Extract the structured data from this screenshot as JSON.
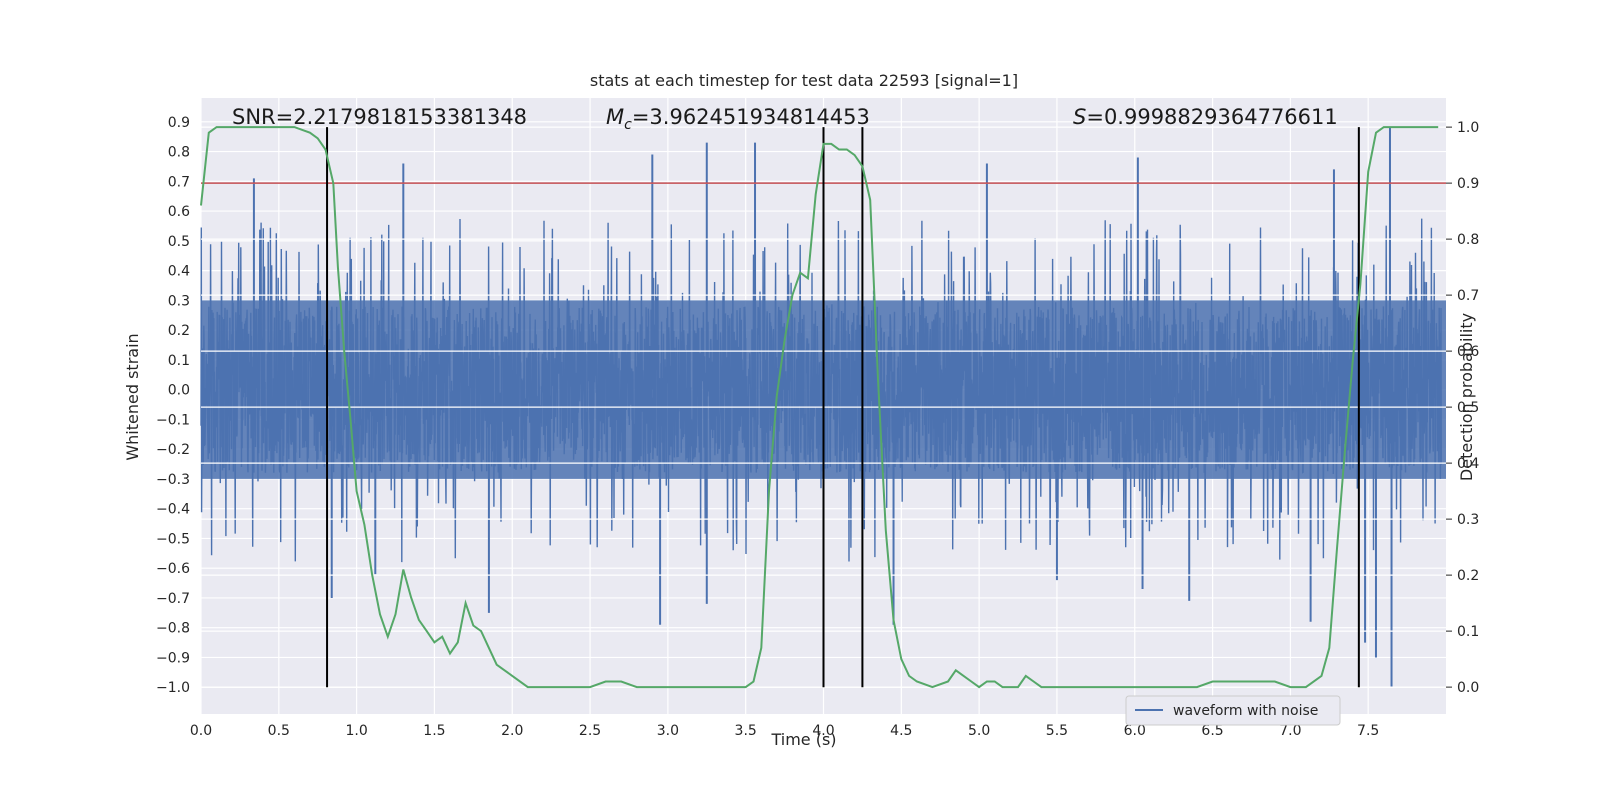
{
  "chart_data": {
    "type": "line",
    "title": "stats at each timestep for test data 22593 [signal=1]",
    "xlabel": "Time (s)",
    "ylabel": "Whitened strain",
    "y2label": "Detection probability",
    "xlim": [
      0.0,
      8.0
    ],
    "ylim": [
      -1.09,
      0.98
    ],
    "y2lim": [
      -0.048,
      1.052
    ],
    "x_ticks": [
      0.0,
      0.5,
      1.0,
      1.5,
      2.0,
      2.5,
      3.0,
      3.5,
      4.0,
      4.5,
      5.0,
      5.5,
      6.0,
      6.5,
      7.0,
      7.5
    ],
    "x_tick_labels": [
      "0.0",
      "0.5",
      "1.0",
      "1.5",
      "2.0",
      "2.5",
      "3.0",
      "3.5",
      "4.0",
      "4.5",
      "5.0",
      "5.5",
      "6.0",
      "6.5",
      "7.0",
      "7.5"
    ],
    "y_ticks": [
      -1.0,
      -0.9,
      -0.8,
      -0.7,
      -0.6,
      -0.5,
      -0.4,
      -0.3,
      -0.2,
      -0.1,
      0.0,
      0.1,
      0.2,
      0.3,
      0.4,
      0.5,
      0.6,
      0.7,
      0.8,
      0.9
    ],
    "y_tick_labels": [
      "−1.0",
      "−0.9",
      "−0.8",
      "−0.7",
      "−0.6",
      "−0.5",
      "−0.4",
      "−0.3",
      "−0.2",
      "−0.1",
      "0.0",
      "0.1",
      "0.2",
      "0.3",
      "0.4",
      "0.5",
      "0.6",
      "0.7",
      "0.8",
      "0.9"
    ],
    "y2_ticks": [
      0.0,
      0.1,
      0.2,
      0.3,
      0.4,
      0.5,
      0.6,
      0.7,
      0.8,
      0.9,
      1.0
    ],
    "y2_tick_labels": [
      "0.0",
      "0.1",
      "0.2",
      "0.3",
      "0.4",
      "0.5",
      "0.6",
      "0.7",
      "0.8",
      "0.9",
      "1.0"
    ],
    "grid": true,
    "legend": {
      "placement": "lower-right",
      "entries": [
        "waveform with noise"
      ]
    },
    "annotations": {
      "snr": "SNR=2.2179818153381348",
      "mc_symbol": "M",
      "mc_subscript": "c",
      "mc_value": "=3.962451934814453",
      "s_symbol": "S",
      "s_value": "=0.9998829364776611"
    },
    "threshold": {
      "y2": 0.9,
      "color": "#c44e52"
    },
    "vlines_x": [
      0.81,
      4.0,
      4.25,
      7.44
    ],
    "series": [
      {
        "name": "waveform with noise",
        "axis": "left",
        "color": "#4c72b0",
        "style": "noise",
        "base_amplitude": 0.28,
        "sample_step": 0.002,
        "spikes": [
          {
            "x": 0.34,
            "y": 0.71
          },
          {
            "x": 1.3,
            "y": 0.76
          },
          {
            "x": 2.9,
            "y": 0.79
          },
          {
            "x": 3.25,
            "y": 0.83
          },
          {
            "x": 3.56,
            "y": 0.83
          },
          {
            "x": 5.05,
            "y": 0.76
          },
          {
            "x": 6.02,
            "y": 0.78
          },
          {
            "x": 7.64,
            "y": 0.88
          },
          {
            "x": 7.28,
            "y": 0.74
          },
          {
            "x": 0.84,
            "y": -0.7
          },
          {
            "x": 1.85,
            "y": -0.75
          },
          {
            "x": 2.95,
            "y": -0.79
          },
          {
            "x": 3.25,
            "y": -0.72
          },
          {
            "x": 4.45,
            "y": -0.79
          },
          {
            "x": 7.65,
            "y": -1.0
          },
          {
            "x": 7.55,
            "y": -0.9
          },
          {
            "x": 7.48,
            "y": -0.85
          },
          {
            "x": 1.12,
            "y": -0.62
          },
          {
            "x": 6.05,
            "y": -0.67
          },
          {
            "x": 6.35,
            "y": -0.71
          },
          {
            "x": 7.13,
            "y": -0.78
          },
          {
            "x": 5.5,
            "y": -0.64
          }
        ]
      },
      {
        "name": "",
        "axis": "right",
        "color": "#55a868",
        "style": "line",
        "x": [
          0.0,
          0.05,
          0.1,
          0.2,
          0.3,
          0.4,
          0.5,
          0.6,
          0.7,
          0.75,
          0.8,
          0.85,
          0.88,
          0.92,
          0.96,
          1.0,
          1.05,
          1.1,
          1.15,
          1.2,
          1.25,
          1.3,
          1.35,
          1.4,
          1.45,
          1.5,
          1.55,
          1.6,
          1.65,
          1.7,
          1.75,
          1.8,
          1.85,
          1.9,
          1.95,
          2.0,
          2.1,
          2.2,
          2.3,
          2.4,
          2.5,
          2.6,
          2.7,
          2.8,
          2.9,
          3.0,
          3.1,
          3.2,
          3.3,
          3.4,
          3.5,
          3.55,
          3.6,
          3.65,
          3.7,
          3.75,
          3.8,
          3.85,
          3.9,
          3.95,
          4.0,
          4.05,
          4.1,
          4.15,
          4.2,
          4.25,
          4.3,
          4.35,
          4.4,
          4.45,
          4.5,
          4.55,
          4.6,
          4.7,
          4.8,
          4.85,
          4.9,
          4.95,
          5.0,
          5.05,
          5.1,
          5.15,
          5.2,
          5.25,
          5.3,
          5.35,
          5.4,
          5.45,
          5.5,
          5.6,
          5.7,
          5.8,
          5.9,
          6.0,
          6.1,
          6.2,
          6.3,
          6.4,
          6.5,
          6.6,
          6.7,
          6.8,
          6.9,
          7.0,
          7.1,
          7.2,
          7.25,
          7.3,
          7.35,
          7.4,
          7.45,
          7.5,
          7.55,
          7.6,
          7.7,
          7.8,
          7.95
        ],
        "y": [
          0.86,
          0.99,
          1.0,
          1.0,
          1.0,
          1.0,
          1.0,
          1.0,
          0.99,
          0.98,
          0.96,
          0.9,
          0.75,
          0.6,
          0.48,
          0.35,
          0.29,
          0.2,
          0.13,
          0.09,
          0.13,
          0.21,
          0.16,
          0.12,
          0.1,
          0.08,
          0.09,
          0.06,
          0.08,
          0.15,
          0.11,
          0.1,
          0.07,
          0.04,
          0.03,
          0.02,
          0.0,
          0.0,
          0.0,
          0.0,
          0.0,
          0.01,
          0.01,
          0.0,
          0.0,
          0.0,
          0.0,
          0.0,
          0.0,
          0.0,
          0.0,
          0.01,
          0.07,
          0.35,
          0.52,
          0.62,
          0.7,
          0.74,
          0.73,
          0.88,
          0.97,
          0.97,
          0.96,
          0.96,
          0.95,
          0.93,
          0.87,
          0.55,
          0.28,
          0.12,
          0.05,
          0.02,
          0.01,
          0.0,
          0.01,
          0.03,
          0.02,
          0.01,
          0.0,
          0.01,
          0.01,
          0.0,
          0.0,
          0.0,
          0.02,
          0.01,
          0.0,
          0.0,
          0.0,
          0.0,
          0.0,
          0.0,
          0.0,
          0.0,
          0.0,
          0.0,
          0.0,
          0.0,
          0.01,
          0.01,
          0.01,
          0.01,
          0.01,
          0.0,
          0.0,
          0.02,
          0.07,
          0.25,
          0.42,
          0.58,
          0.72,
          0.92,
          0.99,
          1.0,
          1.0,
          1.0,
          1.0
        ]
      }
    ]
  }
}
